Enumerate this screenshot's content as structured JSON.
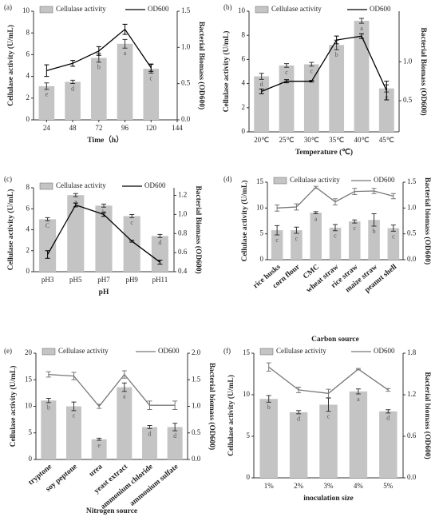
{
  "chart_data": [
    {
      "type": "bar",
      "title": "(a)",
      "x_label": "Time（h）",
      "y_label": "Cellulase activity (U/mL)",
      "y2_label": "Bacterial Biomass (OD600)",
      "x": [
        24,
        48,
        72,
        96,
        120
      ],
      "xlim": [
        12,
        144
      ],
      "xticks": [
        24,
        48,
        72,
        96,
        120,
        144
      ],
      "ylim": [
        0,
        10
      ],
      "yticks": [
        0,
        2,
        4,
        6,
        8,
        10
      ],
      "y2lim": [
        0,
        1.5
      ],
      "y2ticks": [
        {
          "value": 0,
          "label": "0.0"
        },
        0.5,
        {
          "value": 1,
          "label": "1.0"
        },
        1.5
      ],
      "series": [
        {
          "name": "Cellulase activity",
          "color": "#c4c4c4",
          "values": [
            3.1,
            3.5,
            5.7,
            7.0,
            4.7
          ],
          "errors": [
            0.3,
            0.15,
            0.4,
            0.4,
            0.4
          ],
          "letters": [
            "e",
            "d",
            "b",
            "a",
            "c"
          ]
        },
        {
          "name": "OD600",
          "type": "line",
          "axis": "y2",
          "color": "#000000",
          "values": [
            0.68,
            0.78,
            0.95,
            1.25,
            0.72
          ],
          "errors": [
            0.08,
            0.04,
            0.06,
            0.07,
            0.05
          ]
        }
      ]
    },
    {
      "type": "bar",
      "title": "(b)",
      "x_label": "Temperature (℃)",
      "y_label": "Cellulase activity (U/mL)",
      "y2_label": "Bacterial Biomass (OD600)",
      "categories": [
        "20℃",
        "25℃",
        "30℃",
        "35℃",
        "40℃",
        "45℃"
      ],
      "ylim": [
        0,
        10
      ],
      "yticks": [
        0,
        2,
        4,
        6,
        8,
        10
      ],
      "y2lim": [
        0.1,
        1.65
      ],
      "y2ticks": [
        0.5,
        {
          "value": 1,
          "label": "1.0"
        }
      ],
      "series": [
        {
          "name": "Cellulase activity",
          "color": "#c4c4c4",
          "values": [
            4.6,
            5.5,
            5.6,
            7.2,
            9.2,
            3.6
          ],
          "errors": [
            0.25,
            0.15,
            0.15,
            0.4,
            0.2,
            0.3
          ],
          "letters": [
            "d",
            "c",
            "c",
            "b",
            "a",
            "e"
          ]
        },
        {
          "name": "OD600",
          "type": "line",
          "axis": "y2",
          "color": "#000000",
          "values": [
            0.62,
            0.75,
            0.75,
            1.28,
            1.33,
            0.63
          ],
          "errors": [
            0.03,
            0.02,
            0.01,
            0.05,
            0.03,
            0.12
          ]
        }
      ]
    },
    {
      "type": "bar",
      "title": "(c)",
      "x_label": "pH",
      "y_label": "Cellulase activity (U/mL)",
      "y2_label": "Bacterial Biomass (OD600)",
      "categories": [
        "pH3",
        "pH5",
        "pH7",
        "pH9",
        "pH11"
      ],
      "ylim": [
        0,
        8
      ],
      "yticks": [
        0,
        2,
        4,
        6,
        8
      ],
      "y2lim": [
        0.4,
        1.28
      ],
      "y2ticks": [
        0.4,
        0.6,
        0.8,
        {
          "value": 1,
          "label": "1.0"
        },
        1.2
      ],
      "series": [
        {
          "name": "Cellulase activity",
          "color": "#c4c4c4",
          "values": [
            5.0,
            7.3,
            6.3,
            5.3,
            3.4
          ],
          "errors": [
            0.15,
            0.15,
            0.15,
            0.15,
            0.15
          ],
          "letters": [
            "C",
            "a",
            "b",
            "c",
            "d"
          ]
        },
        {
          "name": "OD600",
          "type": "line",
          "axis": "y2",
          "color": "#000000",
          "values": [
            0.58,
            1.1,
            1.0,
            0.72,
            0.5
          ],
          "errors": [
            0.04,
            0.02,
            0.02,
            0.01,
            0.02
          ]
        }
      ]
    },
    {
      "type": "bar",
      "title": "(d)",
      "x_label": "Carbon source",
      "y_label": "Cellulase activity (U/mL)",
      "y2_label": "Bacterial biomass (OD600)",
      "categories": [
        "rice husks",
        "corn flour",
        "CMC",
        "wheat straw",
        "rice straw",
        "maize straw",
        "peanut shell"
      ],
      "ylim": [
        0,
        15
      ],
      "yticks": [
        0,
        5,
        10,
        15
      ],
      "y2lim": [
        0,
        1.5
      ],
      "y2ticks": [
        {
          "value": 0,
          "label": "0.0"
        },
        0.5,
        {
          "value": 1,
          "label": "1.0"
        },
        1.5
      ],
      "series": [
        {
          "name": "Cellulase activity",
          "color": "#c4c4c4",
          "values": [
            5.7,
            5.7,
            9.1,
            6.2,
            7.4,
            7.7,
            6.1
          ],
          "errors": [
            0.9,
            0.6,
            0.2,
            0.6,
            0.3,
            1.2,
            0.6
          ],
          "letters": [
            "c",
            "c",
            "a",
            "c",
            "c",
            "b",
            "c"
          ]
        },
        {
          "name": "OD600",
          "type": "line",
          "axis": "y2",
          "color": "#777777",
          "values": [
            1.0,
            1.02,
            1.4,
            1.12,
            1.32,
            1.33,
            1.23
          ],
          "errors": [
            0.06,
            0.06,
            0.02,
            0.06,
            0.06,
            0.05,
            0.05
          ]
        }
      ]
    },
    {
      "type": "bar",
      "title": "(e)",
      "x_label": "Nitrogen source",
      "y_label": "Cellulase activity (U/mL)",
      "y2_label": "Bacterial biomass (OD600)",
      "categories": [
        "tryptone",
        "soy peptone",
        "urea",
        "yeast extract",
        "ammonium chloride",
        "ammonium sulfate"
      ],
      "ylim": [
        0,
        20
      ],
      "yticks": [
        0,
        5,
        10,
        15,
        20
      ],
      "y2lim": [
        0,
        2
      ],
      "y2ticks": [
        {
          "value": 0,
          "label": "0.0"
        },
        0.5,
        {
          "value": 1,
          "label": "1.0"
        },
        1.5,
        {
          "value": 2,
          "label": "2.0"
        }
      ],
      "series": [
        {
          "name": "Cellulase activity",
          "color": "#c4c4c4",
          "values": [
            11.1,
            10.0,
            3.8,
            13.6,
            6.1,
            6.1
          ],
          "errors": [
            0.4,
            0.8,
            0.2,
            0.8,
            0.3,
            0.7
          ],
          "letters": [
            "b",
            "c",
            "e",
            "a",
            "d",
            "d"
          ]
        },
        {
          "name": "OD600",
          "type": "line",
          "axis": "y2",
          "color": "#777777",
          "values": [
            1.6,
            1.57,
            1.0,
            1.6,
            1.02,
            1.02
          ],
          "errors": [
            0.05,
            0.07,
            0.04,
            0.07,
            0.08,
            0.08
          ]
        }
      ]
    },
    {
      "type": "bar",
      "title": "(f)",
      "x_label": "inoculation size",
      "y_label": "Cellulase activity (U/mL)",
      "y2_label": "Bacterial biomass (OD600)",
      "categories": [
        "1%",
        "2%",
        "3%",
        "4%",
        "5%"
      ],
      "ylim": [
        0,
        15
      ],
      "yticks": [
        0,
        5,
        10,
        15
      ],
      "y2lim": [
        0,
        1.8
      ],
      "y2ticks": [
        {
          "value": 0,
          "label": "0.0"
        },
        0.6,
        1.2,
        1.8
      ],
      "series": [
        {
          "name": "Cellulase activity",
          "color": "#c4c4c4",
          "values": [
            9.5,
            7.9,
            8.8,
            10.4,
            8.0
          ],
          "errors": [
            0.4,
            0.2,
            0.8,
            0.3,
            0.2
          ],
          "letters": [
            "b",
            "d",
            "c",
            "a",
            "d"
          ]
        },
        {
          "name": "OD600",
          "type": "line",
          "axis": "y2",
          "color": "#777777",
          "values": [
            1.6,
            1.27,
            1.22,
            1.57,
            1.27
          ],
          "errors": [
            0.06,
            0.04,
            0.06,
            0.01,
            0.02
          ]
        }
      ]
    }
  ]
}
